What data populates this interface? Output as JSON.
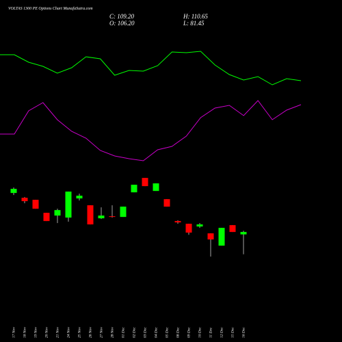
{
  "chart_data": {
    "type": "candlestick",
    "title": "VOLTAS 1300  PE Options  Chart MunafaSutra.com",
    "ohlc_labels": [
      "C: 109.20",
      "H: 110.65",
      "O: 106.20",
      "L: 81.45"
    ],
    "categories": [
      "17 Nov",
      "18 Nov",
      "19 Nov",
      "20 Nov",
      "21 Nov",
      "24 Nov",
      "25 Nov",
      "26 Nov",
      "27 Nov",
      "28 Nov",
      "01 Dec",
      "02 Dec",
      "03 Dec",
      "04 Dec",
      "05 Dec",
      "08 Dec",
      "09 Dec",
      "10 Dec",
      "11 Dec",
      "12 Dec",
      "15 Dec",
      "16 Dec"
    ],
    "open": [
      157.7,
      151.7,
      149.2,
      133.0,
      129.6,
      127.1,
      150.9,
      142.4,
      126.2,
      128.8,
      127.9,
      158.5,
      176.4,
      160.2,
      150.0,
      122.8,
      119.4,
      116.0,
      107.5,
      92.2,
      117.7,
      106.2
    ],
    "high": [
      164.5,
      152.6,
      149.2,
      133.0,
      138.1,
      159.4,
      156.8,
      142.4,
      139.8,
      142.4,
      140.7,
      167.9,
      176.4,
      169.6,
      150.0,
      123.7,
      119.4,
      120.3,
      107.5,
      114.3,
      117.7,
      110.65
    ],
    "low": [
      155.1,
      144.9,
      138.1,
      122.8,
      120.3,
      122.0,
      148.3,
      118.6,
      125.4,
      127.1,
      127.9,
      158.5,
      166.2,
      160.2,
      140.7,
      119.4,
      105.7,
      114.3,
      78.6,
      92.2,
      109.2,
      81.45
    ],
    "close": [
      162.8,
      147.5,
      138.1,
      122.8,
      136.4,
      159.4,
      154.3,
      118.6,
      129.6,
      127.9,
      140.7,
      167.9,
      166.2,
      169.6,
      140.7,
      121.1,
      108.4,
      118.6,
      99.9,
      114.3,
      109.2,
      109.2
    ],
    "up_color": "#00ff00",
    "down_color": "#ff0000",
    "ylim": [
      60,
      185
    ],
    "indicators": [
      {
        "color": "#00ff00",
        "values": [
          170,
          170,
          159,
          153,
          143,
          151,
          167,
          164,
          140,
          147,
          146,
          154,
          174,
          173,
          175,
          155,
          141,
          133,
          138,
          126,
          135,
          132
        ]
      },
      {
        "color": "#cc00cc",
        "values": [
          54,
          54,
          88,
          100,
          75,
          58,
          48,
          30,
          22,
          18,
          15,
          31,
          36,
          51,
          78,
          92,
          96,
          81,
          103,
          75,
          89,
          97
        ]
      }
    ],
    "indicator_lim": [
      0,
      250
    ]
  }
}
